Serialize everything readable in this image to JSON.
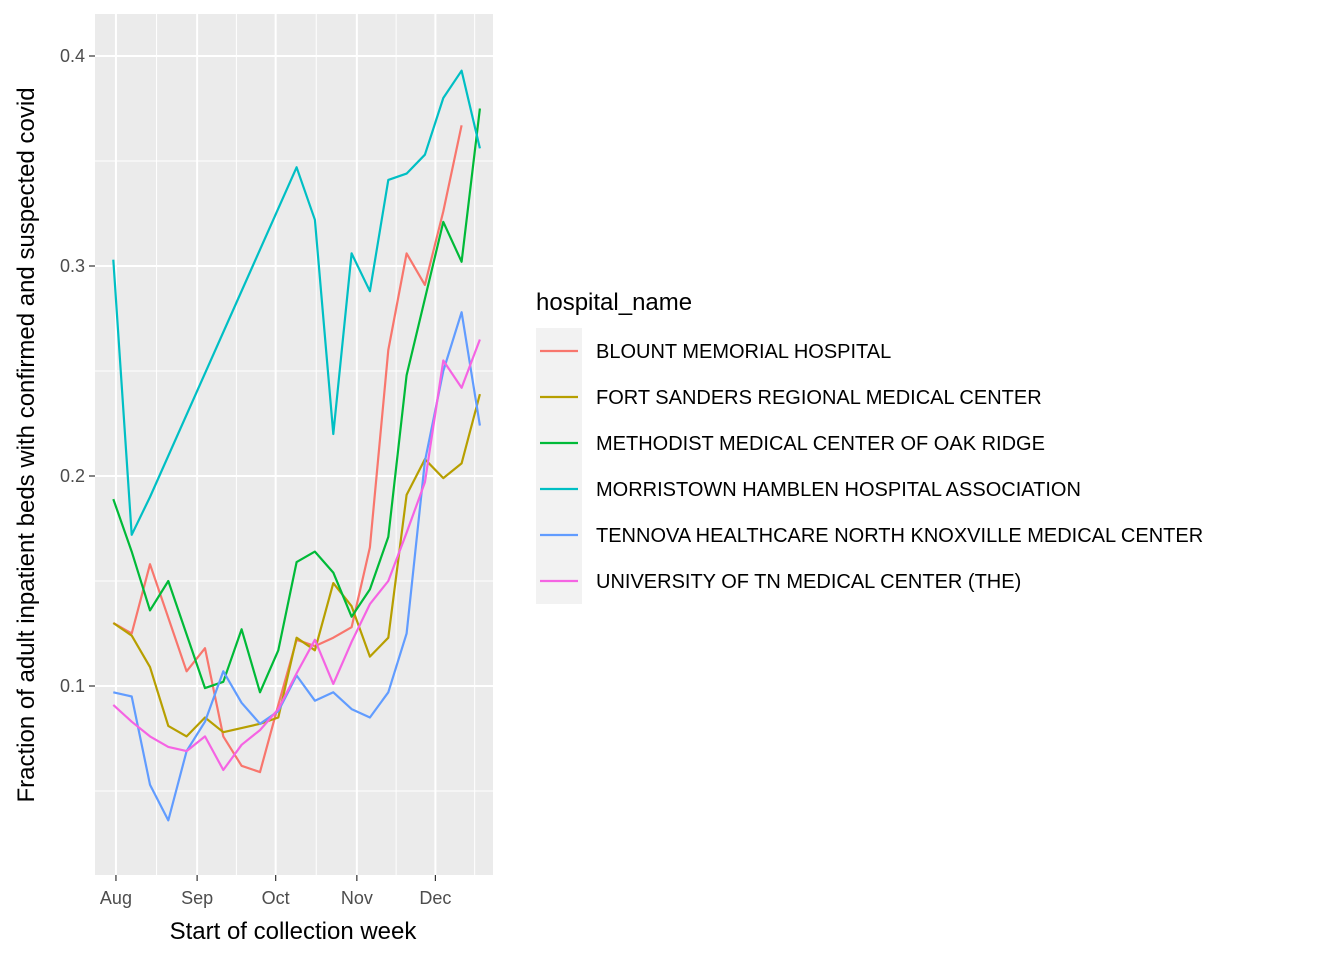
{
  "chart_data": {
    "type": "line",
    "title": "",
    "xlabel": "Start of collection week",
    "ylabel": "Fraction of adult inpatient beds with confirmed and suspected covid",
    "x_ticks": [
      {
        "label": "Aug",
        "date": "2020-08-01"
      },
      {
        "label": "Sep",
        "date": "2020-09-01"
      },
      {
        "label": "Oct",
        "date": "2020-10-01"
      },
      {
        "label": "Nov",
        "date": "2020-11-01"
      },
      {
        "label": "Dec",
        "date": "2020-12-01"
      }
    ],
    "y_ticks": [
      0.1,
      0.2,
      0.3,
      0.4
    ],
    "y_tick_labels": [
      "0.1",
      "0.2",
      "0.3",
      "0.4"
    ],
    "xlim": [
      "2020-07-24",
      "2020-12-23"
    ],
    "ylim": [
      0.01,
      0.42
    ],
    "grid": true,
    "legend_title": "hospital_name",
    "legend_position": "right",
    "x": [
      "2020-07-31",
      "2020-08-07",
      "2020-08-14",
      "2020-08-21",
      "2020-08-28",
      "2020-09-04",
      "2020-09-11",
      "2020-09-18",
      "2020-09-25",
      "2020-10-02",
      "2020-10-09",
      "2020-10-16",
      "2020-10-23",
      "2020-10-30",
      "2020-11-06",
      "2020-11-13",
      "2020-11-20",
      "2020-11-27",
      "2020-12-04",
      "2020-12-11",
      "2020-12-18"
    ],
    "series": [
      {
        "name": "BLOUNT MEMORIAL HOSPITAL",
        "color": "#F8766D",
        "values": [
          0.13,
          0.125,
          0.158,
          null,
          0.107,
          0.118,
          0.076,
          0.062,
          0.059,
          0.091,
          0.122,
          0.119,
          0.123,
          0.128,
          0.166,
          0.26,
          0.306,
          0.291,
          0.326,
          0.367,
          null
        ]
      },
      {
        "name": "FORT SANDERS REGIONAL MEDICAL CENTER",
        "color": "#B79F00",
        "values": [
          0.13,
          0.124,
          0.109,
          0.081,
          0.076,
          0.085,
          0.078,
          null,
          0.082,
          0.085,
          0.123,
          0.117,
          0.149,
          0.138,
          0.114,
          0.123,
          0.191,
          0.208,
          0.199,
          0.206,
          0.239
        ]
      },
      {
        "name": "METHODIST MEDICAL CENTER OF OAK RIDGE",
        "color": "#00BA38",
        "values": [
          0.189,
          0.164,
          0.136,
          0.15,
          null,
          0.099,
          0.102,
          0.127,
          0.097,
          0.117,
          0.159,
          0.164,
          0.154,
          0.133,
          0.146,
          0.171,
          0.248,
          null,
          0.321,
          0.302,
          0.375
        ]
      },
      {
        "name": "MORRISTOWN HAMBLEN HOSPITAL ASSOCIATION",
        "color": "#00BFC4",
        "values": [
          0.303,
          0.172,
          0.19,
          null,
          null,
          null,
          null,
          null,
          null,
          null,
          0.347,
          0.322,
          0.22,
          0.306,
          0.288,
          0.341,
          0.344,
          0.353,
          0.38,
          0.393,
          0.356
        ]
      },
      {
        "name": "TENNOVA HEALTHCARE NORTH KNOXVILLE MEDICAL CENTER",
        "color": "#619CFF",
        "values": [
          0.097,
          0.095,
          0.053,
          0.036,
          0.069,
          0.083,
          0.107,
          0.092,
          0.082,
          0.088,
          0.105,
          0.093,
          0.097,
          0.089,
          0.085,
          0.097,
          0.125,
          0.207,
          0.25,
          0.278,
          0.224
        ]
      },
      {
        "name": "UNIVERSITY OF TN MEDICAL CENTER (THE)",
        "color": "#F564E3",
        "values": [
          0.091,
          0.083,
          0.076,
          0.071,
          0.069,
          0.076,
          0.06,
          0.072,
          0.079,
          0.089,
          0.106,
          0.122,
          0.101,
          0.121,
          0.139,
          0.15,
          0.173,
          0.197,
          0.255,
          0.242,
          0.265
        ]
      }
    ]
  }
}
